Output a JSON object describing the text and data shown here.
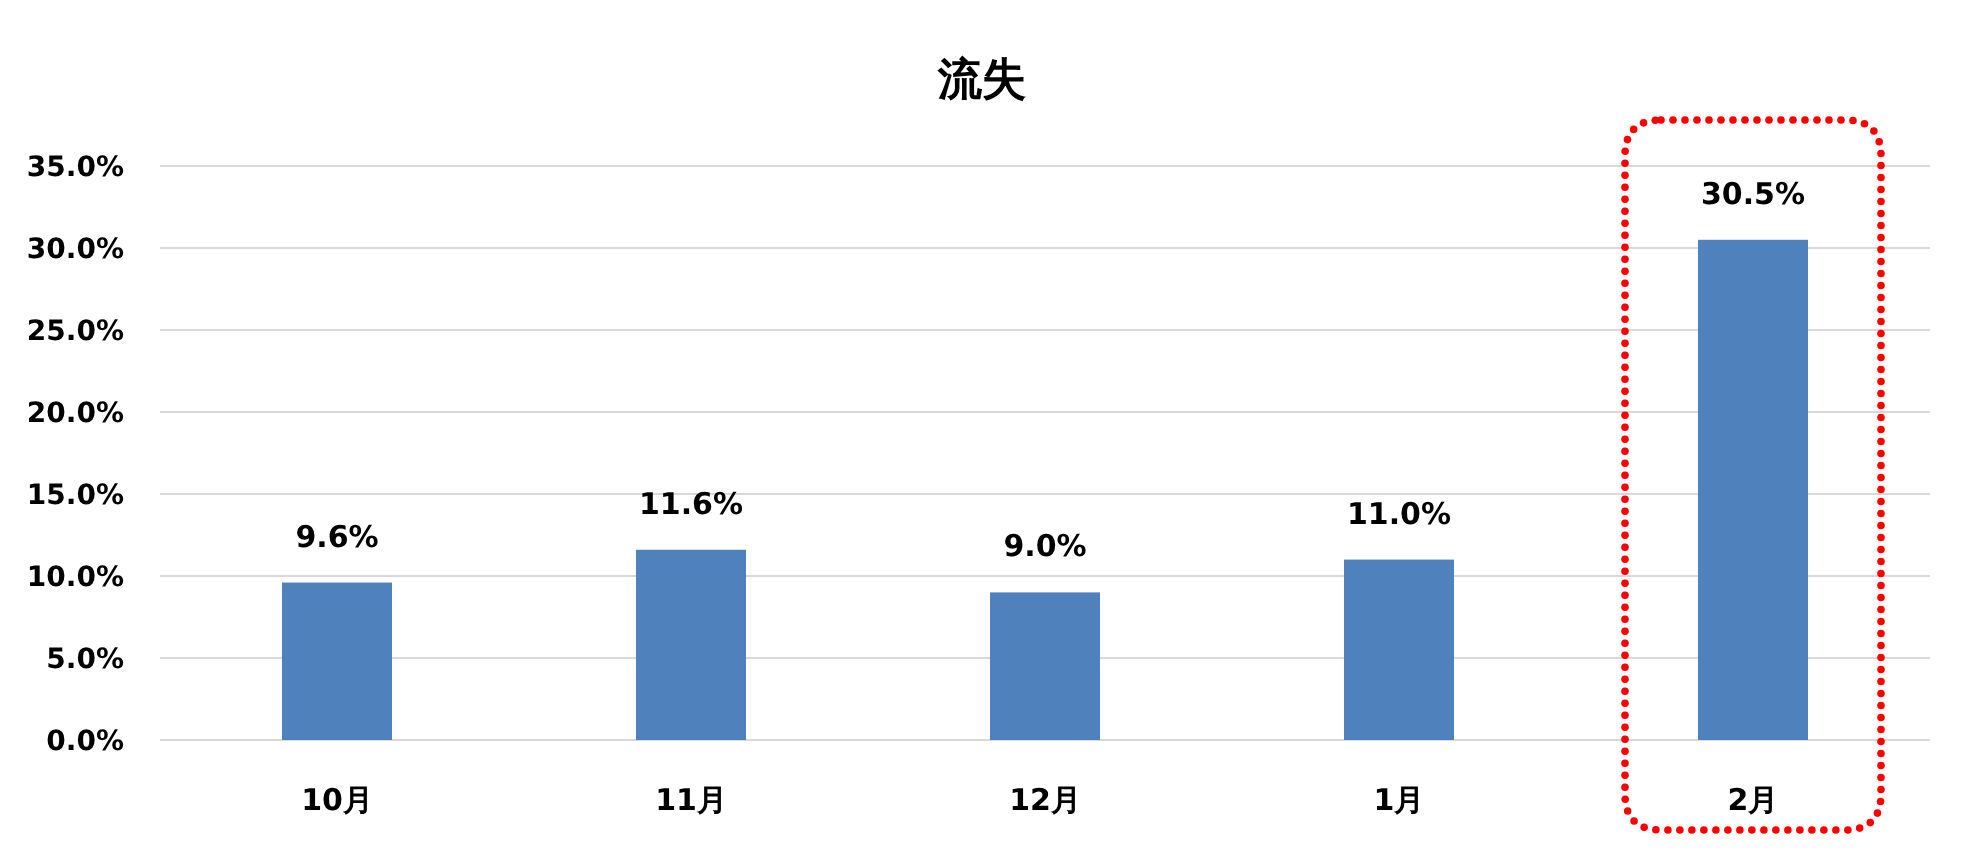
{
  "chart_data": {
    "type": "bar",
    "title": "流失",
    "categories": [
      "10月",
      "11月",
      "12月",
      "1月",
      "2月"
    ],
    "values": [
      9.6,
      11.6,
      9.0,
      11.0,
      30.5
    ],
    "value_labels": [
      "9.6%",
      "11.6%",
      "9.0%",
      "11.0%",
      "30.5%"
    ],
    "color": "#4f81bd",
    "ylim": [
      0,
      35
    ],
    "yticks": [
      {
        "value": 0,
        "label": "0.0%"
      },
      {
        "value": 5,
        "label": "5.0%"
      },
      {
        "value": 10,
        "label": "10.0%"
      },
      {
        "value": 15,
        "label": "15.0%"
      },
      {
        "value": 20,
        "label": "20.0%"
      },
      {
        "value": 25,
        "label": "25.0%"
      },
      {
        "value": 30,
        "label": "30.0%"
      },
      {
        "value": 35,
        "label": "35.0%"
      }
    ],
    "grid": "y"
  }
}
